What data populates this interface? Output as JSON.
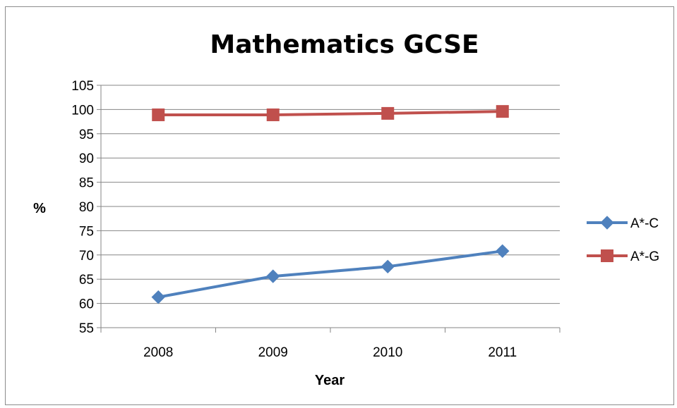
{
  "chart_data": {
    "type": "line",
    "title": "Mathematics GCSE",
    "xlabel": "Year",
    "ylabel": "%",
    "categories": [
      "2008",
      "2009",
      "2010",
      "2011"
    ],
    "ylim": [
      55,
      105
    ],
    "yticks": [
      55,
      60,
      65,
      70,
      75,
      80,
      85,
      90,
      95,
      100,
      105
    ],
    "grid": true,
    "legend": "right",
    "series": [
      {
        "name": "A*-C",
        "values": [
          61.3,
          65.6,
          67.6,
          70.8
        ],
        "color": "#4F81BD",
        "marker": "diamond"
      },
      {
        "name": "A*-G",
        "values": [
          98.9,
          98.9,
          99.2,
          99.6
        ],
        "color": "#C0504D",
        "marker": "square"
      }
    ]
  }
}
